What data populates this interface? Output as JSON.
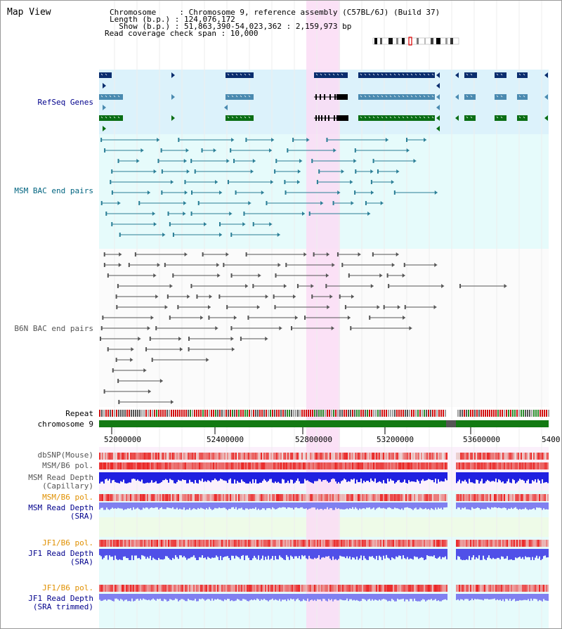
{
  "header": {
    "view_title": "Map View",
    "info_lines": [
      "Chromosome     : Chromosome 9, reference assembly (C57BL/6J) (Build 37)",
      "Length (b.p.) : 124,076,172",
      "  Show (b.p.) : 51,863,390-54,023,362 : 2,159,973 bp",
      "Read coverage check span : 10,000"
    ]
  },
  "tracks": {
    "refseq": "RefSeq Genes",
    "msm_bac": "MSM BAC end pairs",
    "b6n_bac": "B6N BAC end pairs",
    "repeat": "Repeat",
    "chromosome": "chromosome 9",
    "dbsnp": "dbSNP(Mouse)",
    "msm_b6_pol": "MSM/B6 pol.",
    "msm_depth_cap_1": "MSM Read Depth",
    "msm_depth_cap_2": "(Capillary)",
    "msm_b6_pol_sra": "MSM/B6 pol.",
    "msm_depth_sra_1": "MSM Read Depth",
    "msm_depth_sra_2": "(SRA)",
    "jf1_pol_1": "JF1/B6 pol.",
    "jf1_depth_1a": "JF1 Read Depth",
    "jf1_depth_1b": "(SRA)",
    "jf1_pol_2": "JF1/B6 pol.",
    "jf1_depth_2a": "JF1 Read Depth",
    "jf1_depth_2b": "(SRA trimmed)"
  },
  "axis": {
    "ticks": [
      "52000000",
      "52400000",
      "52800000",
      "53200000",
      "53600000",
      "5400"
    ]
  },
  "colors": {
    "refseq_bg": "#dcf2fb",
    "msm_bg": "#e6fbfb",
    "highlight": "#fadcf5",
    "gene_dark": "#0a2d6e",
    "gene_mid": "#4a8ab0",
    "gene_green": "#0a6e14",
    "msm_line": "#2a7e96",
    "b6n_line": "#555555",
    "chrom_green": "#137a13",
    "pol_red": "#e02020",
    "depth_blue": "#2020e0",
    "depth_light": "#8080f0",
    "label_blue": "#00008c",
    "label_teal": "#006480",
    "label_orange": "#e09000"
  }
}
